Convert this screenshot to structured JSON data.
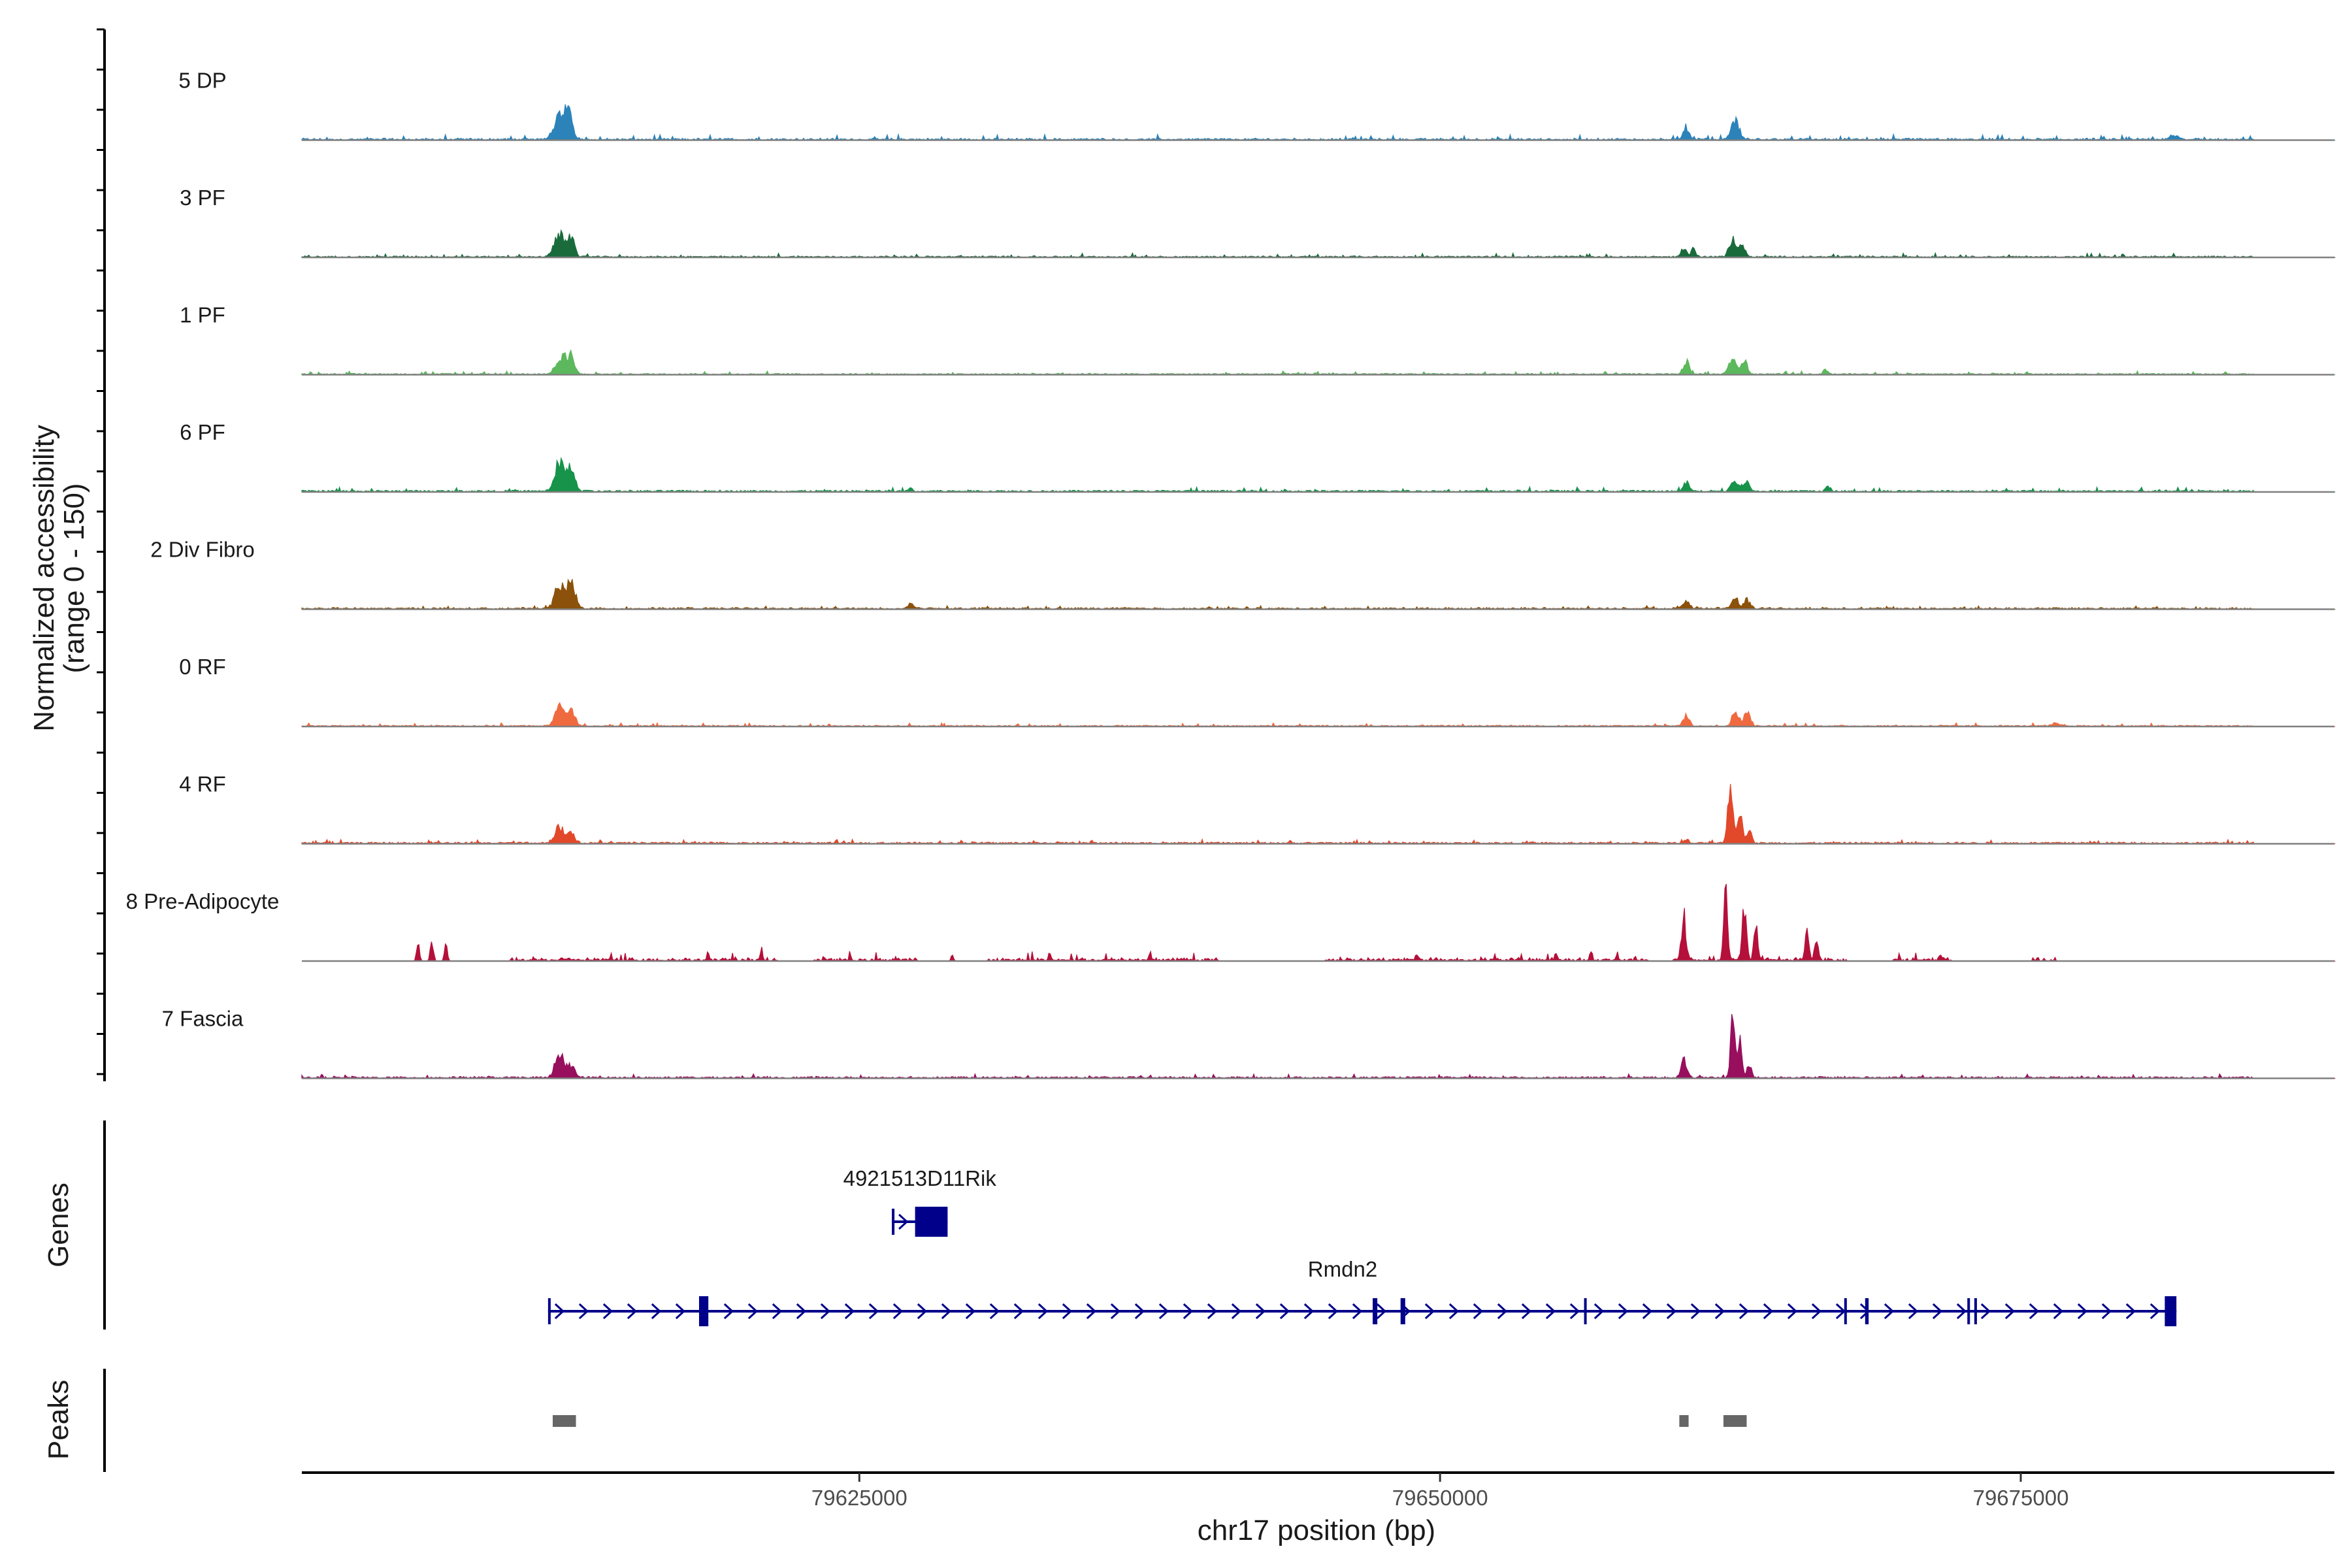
{
  "chart_data": {
    "type": "area",
    "title": "",
    "ylabel_line1": "Normalized accessibility",
    "ylabel_line2": "(range 0 - 150)",
    "xlabel": "chr17 position (bp)",
    "xlim": [
      79601000,
      79688500
    ],
    "ylim": [
      0,
      150
    ],
    "xticks": [
      {
        "value": 79625000,
        "label": "79625000"
      },
      {
        "value": 79650000,
        "label": "79650000"
      },
      {
        "value": 79675000,
        "label": "79675000"
      }
    ],
    "baseline_color": "#808080",
    "series": [
      {
        "name": "5 DP",
        "color": "#2b83ba",
        "peaks": [
          [
            79612100,
            40,
            500
          ],
          [
            79612500,
            45,
            300
          ],
          [
            79660600,
            22,
            250
          ],
          [
            79662700,
            32,
            350
          ],
          [
            79681600,
            8,
            400
          ]
        ],
        "noise": [
          0.3,
          8
        ],
        "noise_ranges": [
          [
            79601000,
            79685000
          ]
        ]
      },
      {
        "name": "3 PF",
        "color": "#1a6b3c",
        "peaks": [
          [
            79612100,
            38,
            450
          ],
          [
            79612600,
            30,
            300
          ],
          [
            79660500,
            18,
            200
          ],
          [
            79660900,
            14,
            200
          ],
          [
            79662600,
            30,
            300
          ],
          [
            79663000,
            20,
            250
          ]
        ],
        "noise": [
          0.3,
          6
        ],
        "noise_ranges": [
          [
            79601000,
            79685000
          ]
        ]
      },
      {
        "name": "1 PF",
        "color": "#5cb85c",
        "peaks": [
          [
            79612200,
            30,
            450
          ],
          [
            79612600,
            25,
            300
          ],
          [
            79660600,
            22,
            250
          ],
          [
            79662600,
            28,
            300
          ],
          [
            79663100,
            22,
            250
          ],
          [
            79666600,
            8,
            200
          ]
        ],
        "noise": [
          0.3,
          5
        ],
        "noise_ranges": [
          [
            79601000,
            79685000
          ]
        ]
      },
      {
        "name": "6 PF",
        "color": "#17934a",
        "peaks": [
          [
            79612100,
            50,
            400
          ],
          [
            79612600,
            40,
            300
          ],
          [
            79627200,
            8,
            150
          ],
          [
            79660600,
            14,
            250
          ],
          [
            79662700,
            20,
            300
          ],
          [
            79663200,
            16,
            250
          ],
          [
            79666700,
            8,
            200
          ]
        ],
        "noise": [
          0.4,
          7
        ],
        "noise_ranges": [
          [
            79601000,
            79685000
          ]
        ]
      },
      {
        "name": "2 Div Fibro",
        "color": "#8c510a",
        "peaks": [
          [
            79612100,
            42,
            400
          ],
          [
            79612600,
            42,
            350
          ],
          [
            79627200,
            10,
            200
          ],
          [
            79660600,
            14,
            250
          ],
          [
            79662700,
            18,
            300
          ],
          [
            79663200,
            16,
            250
          ]
        ],
        "noise": [
          0.4,
          5
        ],
        "noise_ranges": [
          [
            79601000,
            79685000
          ]
        ]
      },
      {
        "name": "0 RF",
        "color": "#f06a40",
        "peaks": [
          [
            79612100,
            35,
            400
          ],
          [
            79612600,
            30,
            300
          ],
          [
            79660600,
            20,
            250
          ],
          [
            79662700,
            28,
            250
          ],
          [
            79663200,
            28,
            250
          ],
          [
            79676500,
            6,
            300
          ]
        ],
        "noise": [
          0.3,
          5
        ],
        "noise_ranges": [
          [
            79601000,
            79685000
          ]
        ]
      },
      {
        "name": "4 RF",
        "color": "#e2482a",
        "peaks": [
          [
            79612100,
            28,
            400
          ],
          [
            79612600,
            18,
            300
          ],
          [
            79660600,
            6,
            200
          ],
          [
            79662500,
            95,
            220
          ],
          [
            79662900,
            60,
            200
          ],
          [
            79663300,
            25,
            200
          ]
        ],
        "noise": [
          0.4,
          6
        ],
        "noise_ranges": [
          [
            79601000,
            79685000
          ]
        ]
      },
      {
        "name": "8 Pre-Adipocyte",
        "color": "#b5103a",
        "peaks": [
          [
            79606000,
            30,
            120
          ],
          [
            79606600,
            40,
            120
          ],
          [
            79607200,
            30,
            120
          ],
          [
            79660500,
            70,
            200
          ],
          [
            79662300,
            130,
            160
          ],
          [
            79663100,
            100,
            180
          ],
          [
            79663600,
            60,
            160
          ],
          [
            79665800,
            55,
            160
          ],
          [
            79666200,
            40,
            150
          ],
          [
            79618500,
            15,
            100
          ],
          [
            79620800,
            12,
            100
          ],
          [
            79629000,
            12,
            100
          ],
          [
            79633200,
            14,
            100
          ],
          [
            79637500,
            12,
            100
          ],
          [
            79649000,
            12,
            100
          ],
          [
            79655000,
            14,
            100
          ],
          [
            79656500,
            14,
            100
          ],
          [
            79671500,
            8,
            100
          ]
        ],
        "noise": [
          0.5,
          14
        ],
        "noise_ranges": [
          [
            79610000,
            79621500
          ],
          [
            79623000,
            79627500
          ],
          [
            79630500,
            79640500
          ],
          [
            79645000,
            79659000
          ],
          [
            79660000,
            79667500
          ],
          [
            79669500,
            79672000
          ],
          [
            79675500,
            79676500
          ]
        ]
      },
      {
        "name": "7 Fascia",
        "color": "#980f5e",
        "peaks": [
          [
            79612100,
            40,
            400
          ],
          [
            79612600,
            20,
            300
          ],
          [
            79660500,
            30,
            250
          ],
          [
            79662600,
            115,
            180
          ],
          [
            79662900,
            60,
            180
          ],
          [
            79663300,
            22,
            200
          ]
        ],
        "noise": [
          0.4,
          6
        ],
        "noise_ranges": [
          [
            79601000,
            79685000
          ]
        ]
      }
    ],
    "genes_label": "Genes",
    "genes": [
      {
        "name": "4921513D11Rik",
        "start": 79626400,
        "end": 79628800,
        "strand": "+",
        "exons": [
          [
            79626400,
            79626500
          ],
          [
            79627400,
            79628800
          ]
        ]
      },
      {
        "name": "Rmdn2",
        "start": 79611600,
        "end": 79681700,
        "strand": "+",
        "exons": [
          [
            79611600,
            79611700
          ],
          [
            79618100,
            79618500
          ],
          [
            79647100,
            79647300
          ],
          [
            79648300,
            79648500
          ],
          [
            79656200,
            79656300
          ],
          [
            79667400,
            79667500
          ],
          [
            79668300,
            79668450
          ],
          [
            79672700,
            79672800
          ],
          [
            79673000,
            79673100
          ],
          [
            79681200,
            79681700
          ]
        ]
      }
    ],
    "peaks_label": "Peaks",
    "peak_regions": [
      [
        79611800,
        79612800
      ],
      [
        79660300,
        79660700
      ],
      [
        79662200,
        79663200
      ]
    ],
    "peaks_color": "#666666",
    "gene_color": "#00008b"
  }
}
